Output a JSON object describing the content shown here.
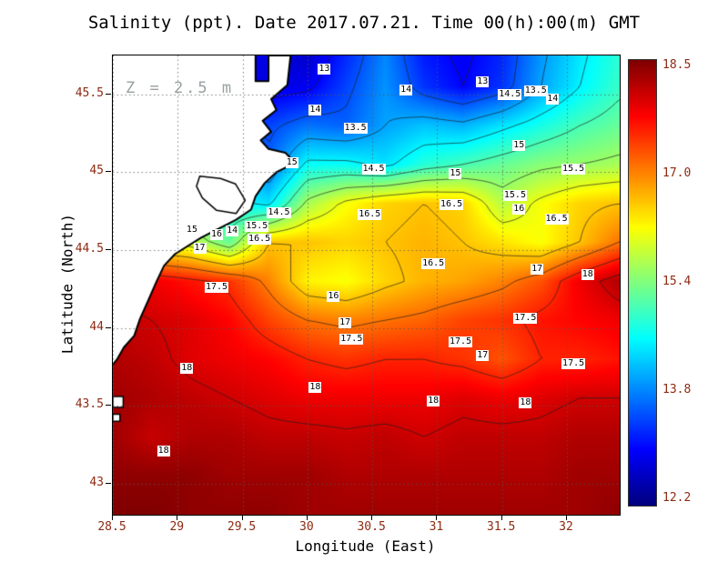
{
  "figure": {
    "title": "Salinity (ppt). Date 2017.07.21. Time 00(h):00(m) GMT",
    "annotation": "Z = 2.5 m"
  },
  "axes": {
    "x": {
      "label": "Longitude (East)",
      "tick_labels": [
        "28.5",
        "29",
        "29.5",
        "30",
        "30.5",
        "31",
        "31.5",
        "32"
      ],
      "tick_values": [
        28.5,
        29,
        29.5,
        30,
        30.5,
        31,
        31.5,
        32
      ],
      "min": 28.5,
      "max": 32.407
    },
    "y": {
      "label": "Latitude (North)",
      "tick_labels": [
        "43",
        "43.5",
        "44",
        "44.5",
        "45",
        "45.5"
      ],
      "tick_values": [
        43,
        43.5,
        44,
        44.5,
        45,
        45.5
      ],
      "min": 42.8,
      "max": 45.75
    }
  },
  "colorbar": {
    "tick_labels": [
      "18.5",
      "17.0",
      "15.4",
      "13.8",
      "12.2"
    ],
    "min": 12.2,
    "max": 18.5
  },
  "style": {
    "tick_color": "#8e2a12",
    "annotation_color": "#98a0a2",
    "contour_color": "rgba(30,30,30,0.85)",
    "grid_color": "rgba(85,85,85,0.75)",
    "land_fill": "#ffffff",
    "coast_color": "#000000"
  },
  "chart_data": {
    "type": "heatmap",
    "title": "Salinity (ppt). Date 2017.07.21. Time 00(h):00(m) GMT",
    "variable": "Salinity",
    "units": "ppt",
    "depth_m": 2.5,
    "date": "2017.07.21",
    "time_gmt": "00(h):00(m)",
    "xlabel": "Longitude (East)",
    "ylabel": "Latitude (North)",
    "xlim": [
      28.5,
      32.407
    ],
    "ylim": [
      42.8,
      45.75
    ],
    "colormap": "jet",
    "cmin": 12.2,
    "cmax": 18.5,
    "contour_levels": [
      13,
      13.5,
      14,
      14.5,
      15,
      15.5,
      16,
      16.5,
      17,
      17.5,
      18
    ],
    "lon": [
      28.5,
      28.8,
      29.1,
      29.4,
      29.7,
      30.0,
      30.3,
      30.6,
      30.9,
      31.2,
      31.5,
      31.8,
      32.1,
      32.4
    ],
    "lat": [
      45.8,
      45.55,
      45.3,
      45.05,
      44.8,
      44.55,
      44.3,
      44.05,
      43.8,
      43.55,
      43.3,
      43.05,
      42.8
    ],
    "values": [
      [
        13.5,
        13.4,
        13.2,
        13.0,
        12.8,
        12.6,
        13.2,
        13.8,
        13.1,
        12.9,
        13.2,
        13.9,
        14.4,
        14.8
      ],
      [
        13.6,
        13.4,
        13.2,
        13.0,
        12.8,
        12.9,
        13.4,
        13.9,
        13.3,
        13.0,
        13.3,
        14.0,
        14.5,
        14.9
      ],
      [
        14.2,
        14.0,
        13.8,
        13.6,
        13.4,
        13.7,
        13.6,
        14.0,
        14.2,
        14.1,
        14.4,
        14.7,
        15.0,
        15.2
      ],
      [
        14.8,
        14.8,
        14.8,
        14.6,
        13.6,
        14.6,
        14.6,
        14.4,
        14.8,
        15.0,
        15.2,
        15.4,
        15.5,
        15.6
      ],
      [
        15.5,
        15.2,
        14.8,
        14.6,
        14.4,
        15.6,
        16.1,
        16.4,
        16.5,
        16.4,
        15.7,
        16.1,
        16.4,
        16.5
      ],
      [
        16.2,
        16.0,
        15.8,
        15.2,
        16.5,
        16.5,
        16.4,
        16.5,
        16.6,
        16.5,
        16.3,
        16.1,
        16.5,
        17.0
      ],
      [
        17.9,
        17.8,
        17.6,
        17.4,
        16.9,
        16.2,
        16.1,
        16.4,
        16.6,
        16.7,
        16.9,
        17.2,
        17.8,
        18.2
      ],
      [
        18.1,
        18.0,
        17.9,
        17.7,
        17.3,
        17.0,
        16.9,
        17.0,
        17.1,
        17.3,
        17.4,
        17.6,
        17.7,
        17.8
      ],
      [
        18.2,
        18.1,
        17.9,
        17.8,
        17.7,
        17.5,
        17.4,
        17.5,
        17.5,
        17.4,
        17.2,
        17.5,
        17.5,
        17.6
      ],
      [
        18.3,
        18.2,
        18.1,
        18.0,
        17.9,
        17.8,
        17.8,
        17.8,
        17.8,
        17.9,
        17.8,
        17.9,
        18.0,
        18.0
      ],
      [
        18.3,
        18.05,
        18.2,
        18.2,
        18.1,
        18.1,
        18.05,
        18.1,
        18.0,
        18.1,
        18.1,
        18.1,
        18.2,
        18.2
      ],
      [
        18.4,
        18.4,
        18.4,
        18.3,
        18.3,
        18.3,
        18.2,
        18.2,
        18.2,
        18.2,
        18.2,
        18.2,
        18.3,
        18.3
      ],
      [
        18.5,
        18.5,
        18.4,
        18.4,
        18.4,
        18.3,
        18.3,
        18.3,
        18.3,
        18.3,
        18.3,
        18.3,
        18.3,
        18.4
      ]
    ],
    "contour_labels": [
      {
        "v": "13",
        "lon": 30.13,
        "lat": 45.66
      },
      {
        "v": "13",
        "lon": 31.35,
        "lat": 45.58
      },
      {
        "v": "14",
        "lon": 30.76,
        "lat": 45.53
      },
      {
        "v": "14.5",
        "lon": 31.56,
        "lat": 45.5
      },
      {
        "v": "13.5",
        "lon": 31.76,
        "lat": 45.52
      },
      {
        "v": "14",
        "lon": 31.89,
        "lat": 45.47
      },
      {
        "v": "14",
        "lon": 30.06,
        "lat": 45.4
      },
      {
        "v": "13.5",
        "lon": 30.37,
        "lat": 45.28
      },
      {
        "v": "15",
        "lon": 31.63,
        "lat": 45.17
      },
      {
        "v": "15",
        "lon": 29.88,
        "lat": 45.06
      },
      {
        "v": "14.5",
        "lon": 30.51,
        "lat": 45.02
      },
      {
        "v": "15",
        "lon": 31.14,
        "lat": 44.99
      },
      {
        "v": "15.5",
        "lon": 32.05,
        "lat": 45.02
      },
      {
        "v": "15.5",
        "lon": 31.6,
        "lat": 44.85
      },
      {
        "v": "16",
        "lon": 31.63,
        "lat": 44.76
      },
      {
        "v": "16.5",
        "lon": 31.11,
        "lat": 44.79
      },
      {
        "v": "16.5",
        "lon": 31.92,
        "lat": 44.7
      },
      {
        "v": "14.5",
        "lon": 29.78,
        "lat": 44.74
      },
      {
        "v": "16.5",
        "lon": 30.48,
        "lat": 44.73
      },
      {
        "v": "15",
        "lon": 29.11,
        "lat": 44.63
      },
      {
        "v": "16",
        "lon": 29.3,
        "lat": 44.6
      },
      {
        "v": "14",
        "lon": 29.42,
        "lat": 44.62
      },
      {
        "v": "15.5",
        "lon": 29.61,
        "lat": 44.65
      },
      {
        "v": "16.5",
        "lon": 29.63,
        "lat": 44.57
      },
      {
        "v": "17",
        "lon": 29.17,
        "lat": 44.51
      },
      {
        "v": "16.5",
        "lon": 30.97,
        "lat": 44.41
      },
      {
        "v": "17",
        "lon": 31.77,
        "lat": 44.38
      },
      {
        "v": "18",
        "lon": 32.16,
        "lat": 44.34
      },
      {
        "v": "17.5",
        "lon": 29.3,
        "lat": 44.26
      },
      {
        "v": "16",
        "lon": 30.2,
        "lat": 44.2
      },
      {
        "v": "17",
        "lon": 30.29,
        "lat": 44.03
      },
      {
        "v": "17.5",
        "lon": 31.68,
        "lat": 44.06
      },
      {
        "v": "17.5",
        "lon": 30.34,
        "lat": 43.93
      },
      {
        "v": "17.5",
        "lon": 31.18,
        "lat": 43.91
      },
      {
        "v": "17",
        "lon": 31.35,
        "lat": 43.82
      },
      {
        "v": "17.5",
        "lon": 32.05,
        "lat": 43.77
      },
      {
        "v": "18",
        "lon": 29.07,
        "lat": 43.74
      },
      {
        "v": "18",
        "lon": 30.06,
        "lat": 43.62
      },
      {
        "v": "18",
        "lon": 30.97,
        "lat": 43.53
      },
      {
        "v": "18",
        "lon": 31.68,
        "lat": 43.52
      },
      {
        "v": "18",
        "lon": 28.89,
        "lat": 43.21
      }
    ],
    "coastline": {
      "land": [
        [
          28.5,
          45.75
        ],
        [
          29.6,
          45.75
        ],
        [
          29.6,
          45.585
        ],
        [
          29.7,
          45.585
        ],
        [
          29.7,
          45.75
        ],
        [
          29.87,
          45.75
        ],
        [
          29.845,
          45.56
        ],
        [
          29.72,
          45.47
        ],
        [
          29.76,
          45.4
        ],
        [
          29.655,
          45.33
        ],
        [
          29.72,
          45.26
        ],
        [
          29.64,
          45.205
        ],
        [
          29.7,
          45.15
        ],
        [
          29.83,
          45.125
        ],
        [
          29.905,
          45.06
        ],
        [
          29.76,
          45.0
        ],
        [
          29.67,
          44.93
        ],
        [
          29.6,
          44.845
        ],
        [
          29.565,
          44.76
        ],
        [
          29.45,
          44.695
        ],
        [
          29.18,
          44.58
        ],
        [
          28.98,
          44.475
        ],
        [
          28.895,
          44.4
        ],
        [
          28.835,
          44.295
        ],
        [
          28.775,
          44.18
        ],
        [
          28.71,
          44.06
        ],
        [
          28.665,
          43.95
        ],
        [
          28.585,
          43.875
        ],
        [
          28.53,
          43.795
        ],
        [
          28.5,
          43.765
        ]
      ],
      "lagoon": [
        [
          29.17,
          44.975
        ],
        [
          29.33,
          44.96
        ],
        [
          29.445,
          44.925
        ],
        [
          29.52,
          44.82
        ],
        [
          29.45,
          44.735
        ],
        [
          29.3,
          44.755
        ],
        [
          29.19,
          44.835
        ],
        [
          29.145,
          44.91
        ]
      ],
      "islets": [
        {
          "lon": 28.5,
          "lat": 43.56,
          "w": 0.08,
          "h": 0.07
        },
        {
          "lon": 28.5,
          "lat": 43.445,
          "w": 0.055,
          "h": 0.045
        }
      ]
    }
  }
}
